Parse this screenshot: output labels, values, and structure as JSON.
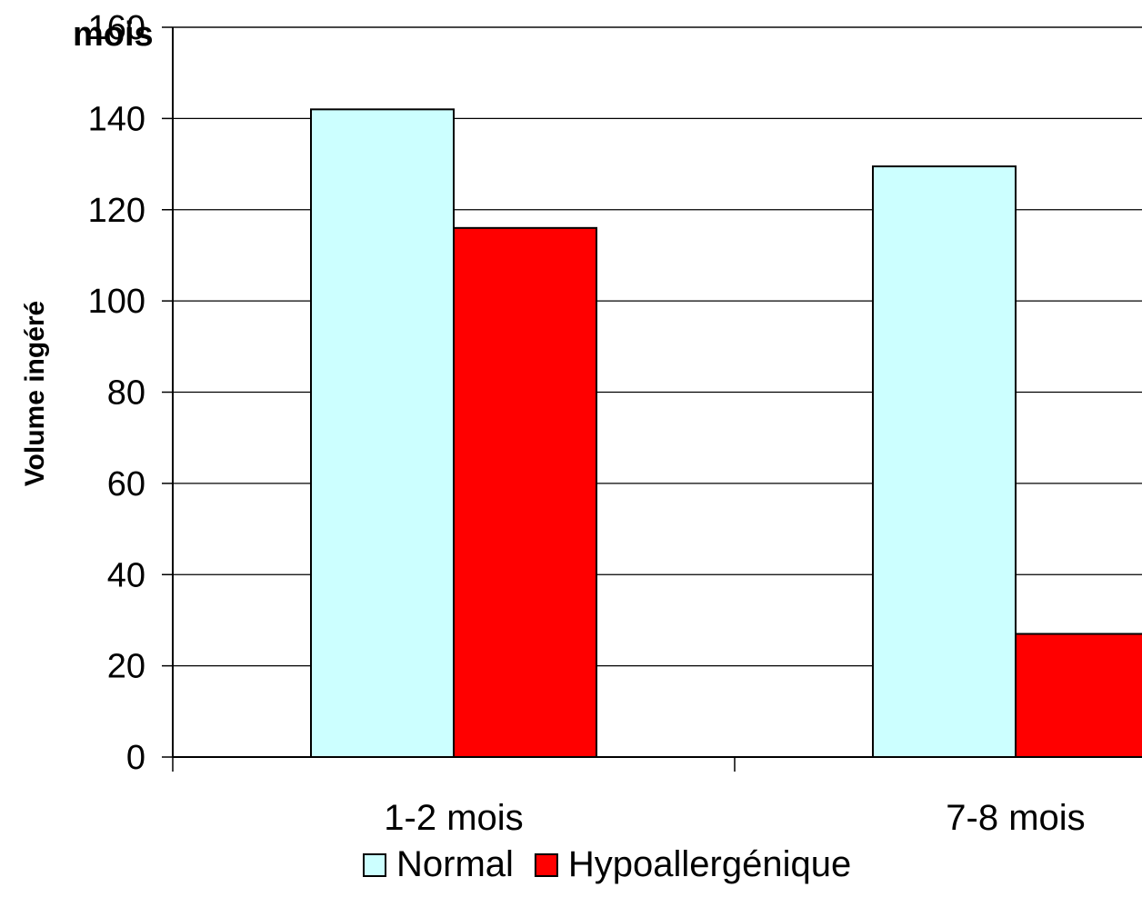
{
  "chart_data": {
    "type": "bar",
    "title_fragment": "mois",
    "ylabel": "Volume ingéré",
    "xlabel": "",
    "categories": [
      "1-2 mois",
      "7-8 mois"
    ],
    "series": [
      {
        "name": "Normal",
        "values": [
          142,
          129.5
        ],
        "color": "#ccffff"
      },
      {
        "name": "Hypoallergénique",
        "values": [
          116,
          27
        ],
        "color": "#ff0000"
      }
    ],
    "ylim": [
      0,
      160
    ],
    "yticks": [
      0,
      20,
      40,
      60,
      80,
      100,
      120,
      140,
      160
    ],
    "grid": true,
    "legend_position": "bottom"
  }
}
